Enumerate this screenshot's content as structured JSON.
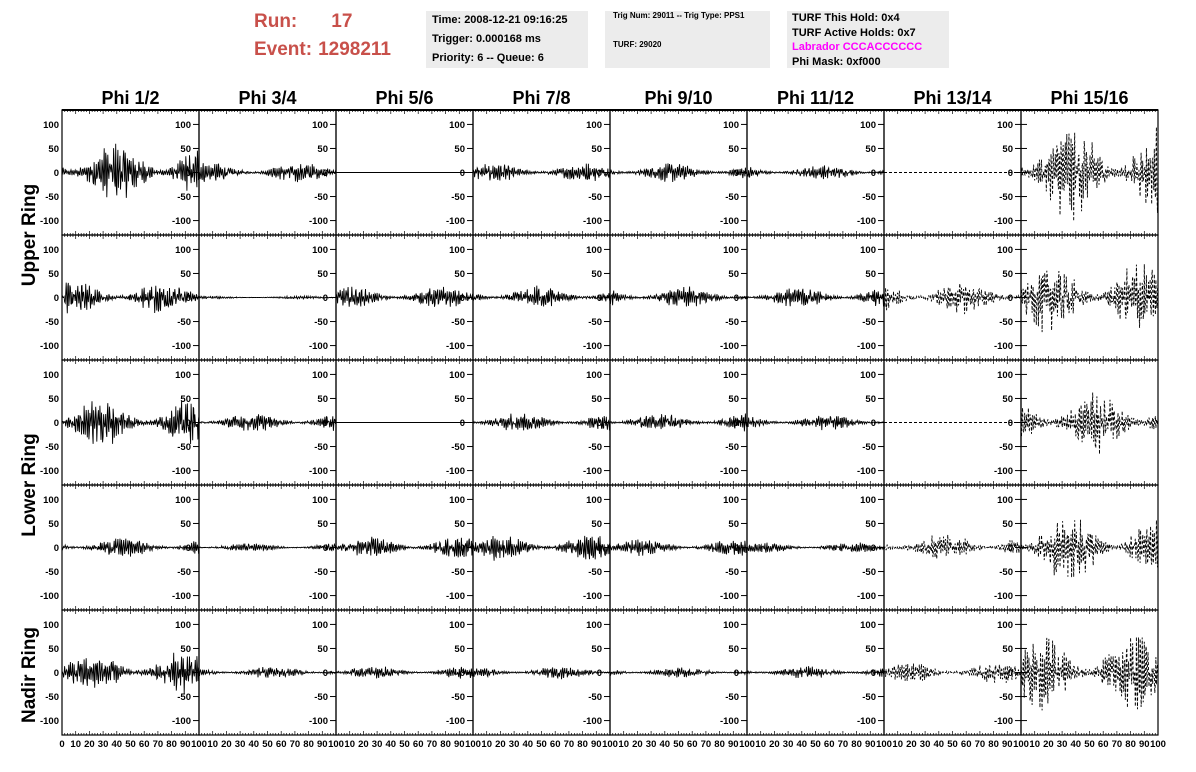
{
  "header": {
    "run_label": "Run:",
    "run_value": "17",
    "event_label": "Event:",
    "event_value": "1298211",
    "time": "Time: 2008-12-21 09:16:25",
    "trigger": "Trigger: 0.000168 ms",
    "priority": "Priority: 6 -- Queue: 6",
    "trig_num": "Trig Num: 29011 -- Trig Type: PPS1",
    "turf": "TURF: 29020",
    "turf_this_hold": "TURF This Hold: 0x4",
    "turf_active_holds": "TURF Active Holds: 0x7",
    "labrador": "Labrador CCCACCCCCC",
    "phi_mask": "Phi Mask: 0xf000"
  },
  "colors": {
    "header_red": "#c8504a",
    "labrador": "#ff00ff",
    "panel_bg": "#ececec"
  },
  "columns": [
    "Phi 1/2",
    "Phi 3/4",
    "Phi 5/6",
    "Phi 7/8",
    "Phi 9/10",
    "Phi 11/12",
    "Phi 13/14",
    "Phi 15/16"
  ],
  "rows": [
    "Upper Ring",
    "Lower Ring",
    "Nadir Ring"
  ],
  "chart_data": {
    "type": "line",
    "x_range": [
      0,
      100
    ],
    "y_range": [
      -130,
      130
    ],
    "x_ticks": [
      0,
      10,
      20,
      30,
      40,
      50,
      60,
      70,
      80,
      90,
      100
    ],
    "y_ticks": [
      -100,
      -50,
      0,
      50,
      100
    ],
    "panels_per_column": 5,
    "amplitudes": [
      [
        55,
        20,
        0,
        18,
        18,
        14,
        0,
        90
      ],
      [
        32,
        3,
        20,
        22,
        20,
        20,
        30,
        70
      ],
      [
        45,
        18,
        0,
        18,
        18,
        15,
        0,
        60
      ],
      [
        18,
        8,
        20,
        25,
        16,
        10,
        28,
        65
      ],
      [
        40,
        12,
        12,
        12,
        10,
        12,
        20,
        75
      ]
    ],
    "dashed_columns": [
      6,
      7
    ]
  }
}
